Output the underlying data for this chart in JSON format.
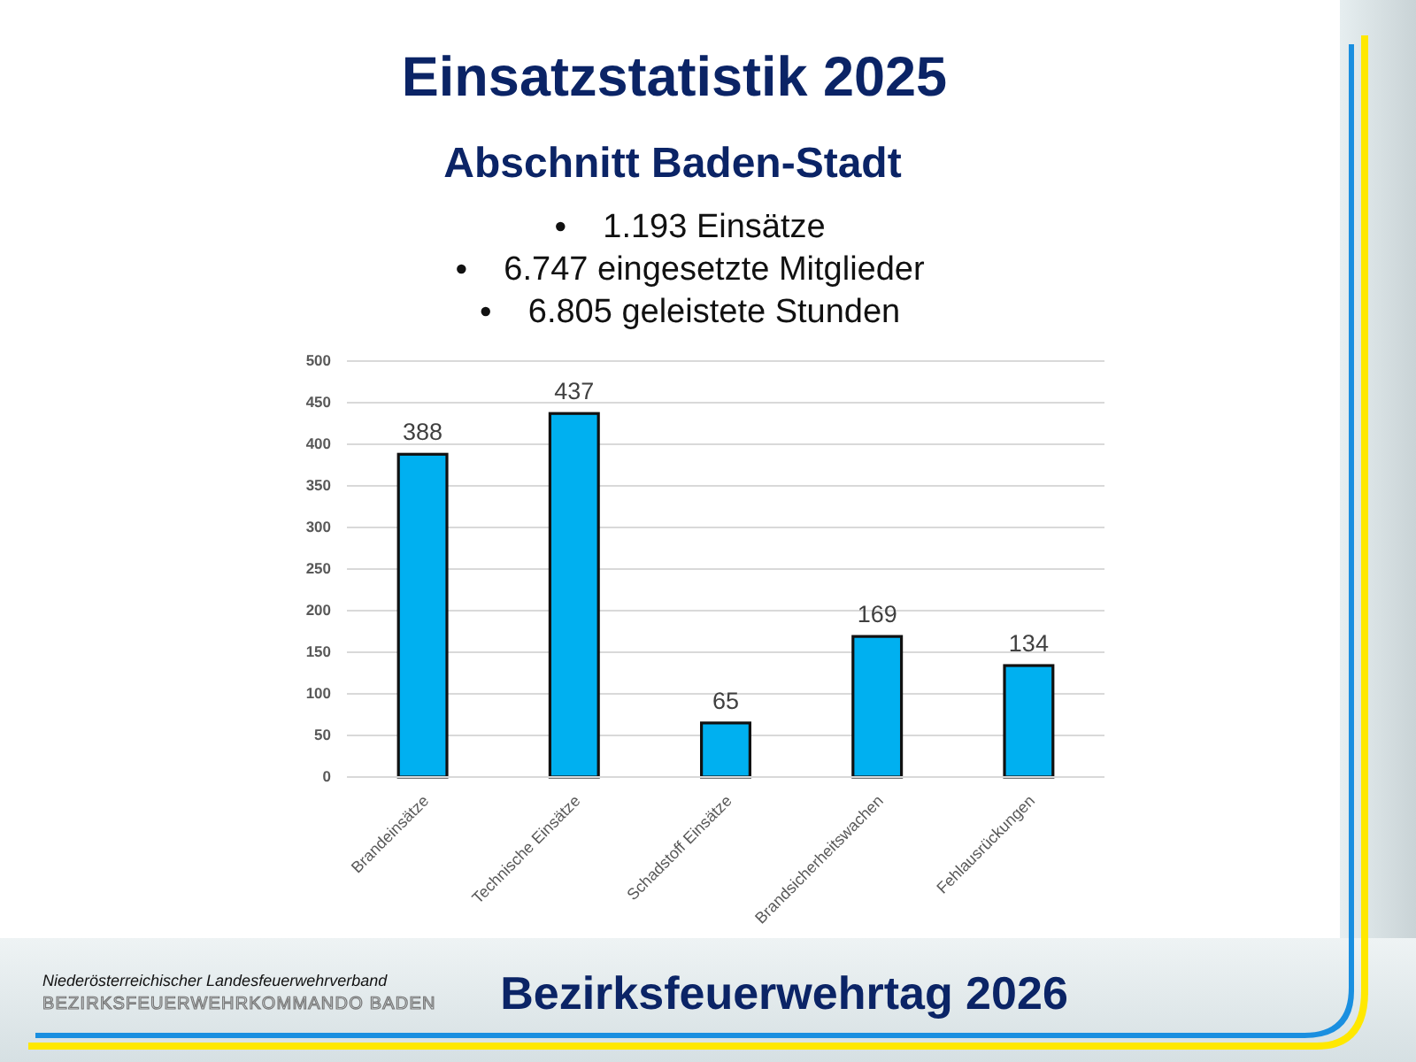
{
  "chart_data": {
    "type": "bar",
    "title": "Einsatzstatistik 2025",
    "subtitle": "Abschnitt Baden-Stadt",
    "annotations": [
      "1.193 Einsätze",
      "6.747 eingesetzte Mitglieder",
      "6.805 geleistete Stunden",
      "Niederösterreichischer Landesfeuerwehrverband",
      "BEZIRKSFEUERWEHRKOMMANDO BADEN",
      "Bezirksfeuerwehrtag 2026"
    ],
    "categories": [
      "Brandeinsätze",
      "Technische Einsätze",
      "Schadstoff Einsätze",
      "Brandsicherheitswachen",
      "Fehlausrückungen"
    ],
    "values": [
      388,
      437,
      65,
      169,
      134
    ],
    "color": "#00b0f0",
    "ylim": [
      0,
      500
    ],
    "yticks": [
      0,
      50,
      100,
      150,
      200,
      250,
      300,
      350,
      400,
      450,
      500
    ],
    "grid": "y",
    "data_labels": true
  }
}
